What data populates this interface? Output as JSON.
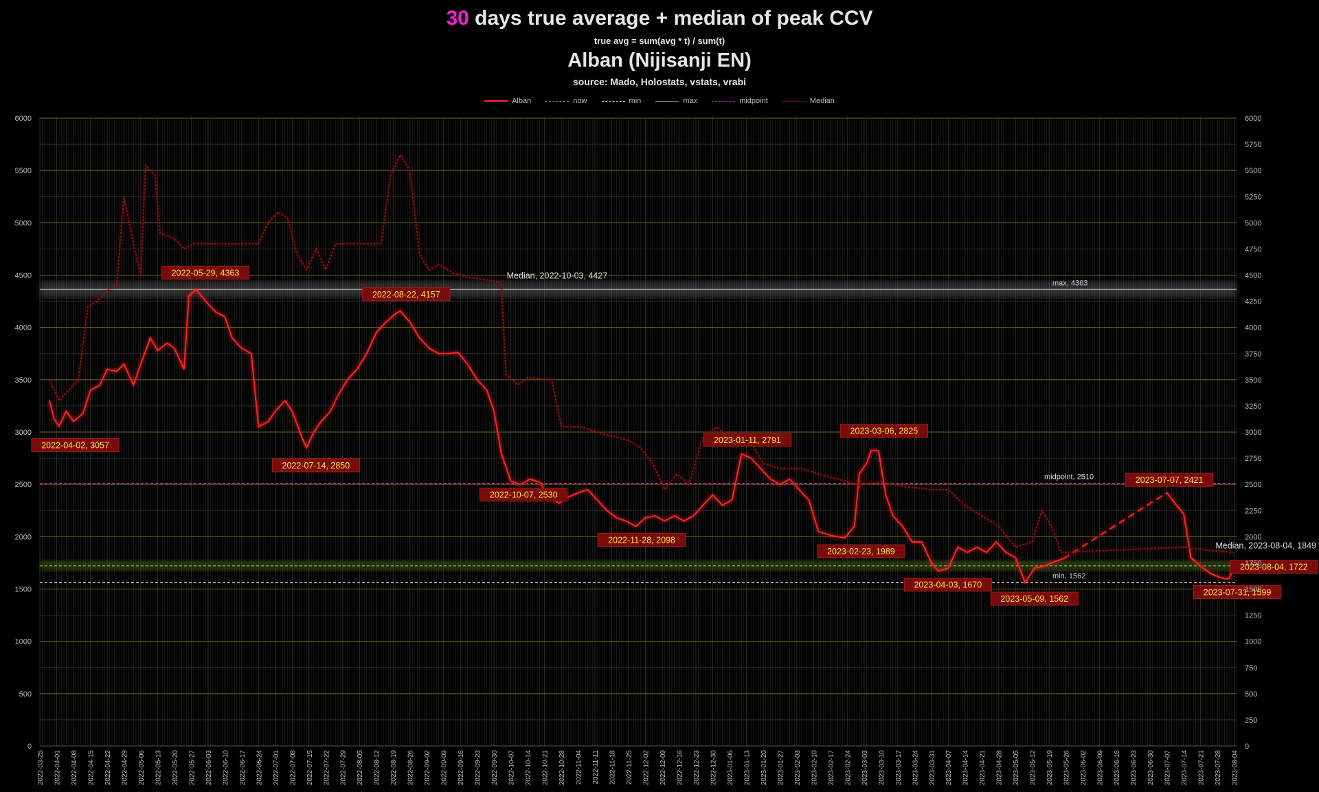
{
  "header": {
    "title_accent": "30",
    "title_rest": " days true average + median of peak CCV",
    "formula": "true avg = sum(avg * t) / sum(t)",
    "subtitle": "Alban (Nijisanji EN)",
    "source": "source: Mado, Holostats, vstats, vrabi"
  },
  "legend": [
    {
      "label": "Alban",
      "color": "#ff2a2a",
      "style": "solid"
    },
    {
      "label": "now",
      "color": "#7fae3a",
      "style": "dashed"
    },
    {
      "label": "min",
      "color": "#dddddd",
      "style": "dashed"
    },
    {
      "label": "max",
      "color": "#888888",
      "style": "solid"
    },
    {
      "label": "midpoint",
      "color": "#d020c0",
      "style": "dashed"
    },
    {
      "label": "Median",
      "color": "#6a0f0f",
      "style": "solid"
    }
  ],
  "chart_data": {
    "type": "line",
    "title": "30 days true average + median of peak CCV",
    "ylim": [
      0,
      6000
    ],
    "y_ticks_left": [
      0,
      500,
      1000,
      1500,
      2000,
      2500,
      3000,
      3500,
      4000,
      4500,
      5000,
      5500,
      6000
    ],
    "y_ticks_right": [
      0,
      250,
      500,
      750,
      1000,
      1250,
      1500,
      1750,
      2000,
      2250,
      2500,
      2750,
      3000,
      3250,
      3500,
      3750,
      4000,
      4250,
      4500,
      4750,
      5000,
      5250,
      5500,
      5750,
      6000
    ],
    "x_start": "2022-03-25",
    "x_end": "2023-08-05",
    "x_ticks": [
      "2022-03-25",
      "2022-04-01",
      "2022-04-08",
      "2022-04-15",
      "2022-04-22",
      "2022-04-29",
      "2022-05-06",
      "2022-05-13",
      "2022-05-20",
      "2022-05-27",
      "2022-06-03",
      "2022-06-10",
      "2022-06-17",
      "2022-06-24",
      "2022-07-01",
      "2022-07-08",
      "2022-07-15",
      "2022-07-22",
      "2022-07-29",
      "2022-08-05",
      "2022-08-12",
      "2022-08-19",
      "2022-08-26",
      "2022-09-02",
      "2022-09-09",
      "2022-09-16",
      "2022-09-23",
      "2022-09-30",
      "2022-10-07",
      "2022-10-14",
      "2022-10-21",
      "2022-10-28",
      "2022-11-04",
      "2022-11-11",
      "2022-11-18",
      "2022-11-25",
      "2022-12-02",
      "2022-12-09",
      "2022-12-16",
      "2022-12-23",
      "2022-12-30",
      "2023-01-06",
      "2023-01-13",
      "2023-01-20",
      "2023-01-27",
      "2023-02-03",
      "2023-02-10",
      "2023-02-17",
      "2023-02-24",
      "2023-03-03",
      "2023-03-10",
      "2023-03-17",
      "2023-03-24",
      "2023-03-31",
      "2023-04-07",
      "2023-04-14",
      "2023-04-21",
      "2023-04-28",
      "2023-05-05",
      "2023-05-12",
      "2023-05-19",
      "2023-05-26",
      "2023-06-02",
      "2023-06-09",
      "2023-06-16",
      "2023-06-23",
      "2023-06-30",
      "2023-07-07",
      "2023-07-14",
      "2023-07-21",
      "2023-07-28",
      "2023-08-04"
    ],
    "series": [
      {
        "name": "Alban",
        "color": "#ff2020",
        "points": [
          [
            "2022-03-29",
            3300
          ],
          [
            "2022-03-31",
            3120
          ],
          [
            "2022-04-02",
            3057
          ],
          [
            "2022-04-05",
            3200
          ],
          [
            "2022-04-08",
            3100
          ],
          [
            "2022-04-12",
            3180
          ],
          [
            "2022-04-15",
            3400
          ],
          [
            "2022-04-19",
            3450
          ],
          [
            "2022-04-22",
            3600
          ],
          [
            "2022-04-26",
            3580
          ],
          [
            "2022-04-29",
            3650
          ],
          [
            "2022-05-03",
            3450
          ],
          [
            "2022-05-06",
            3650
          ],
          [
            "2022-05-10",
            3900
          ],
          [
            "2022-05-13",
            3780
          ],
          [
            "2022-05-17",
            3850
          ],
          [
            "2022-05-20",
            3800
          ],
          [
            "2022-05-24",
            3600
          ],
          [
            "2022-05-26",
            4300
          ],
          [
            "2022-05-29",
            4363
          ],
          [
            "2022-06-02",
            4250
          ],
          [
            "2022-06-06",
            4150
          ],
          [
            "2022-06-10",
            4100
          ],
          [
            "2022-06-13",
            3900
          ],
          [
            "2022-06-17",
            3800
          ],
          [
            "2022-06-21",
            3750
          ],
          [
            "2022-06-24",
            3050
          ],
          [
            "2022-06-28",
            3100
          ],
          [
            "2022-07-01",
            3200
          ],
          [
            "2022-07-05",
            3300
          ],
          [
            "2022-07-08",
            3200
          ],
          [
            "2022-07-12",
            2950
          ],
          [
            "2022-07-14",
            2850
          ],
          [
            "2022-07-17",
            3000
          ],
          [
            "2022-07-20",
            3100
          ],
          [
            "2022-07-24",
            3200
          ],
          [
            "2022-07-27",
            3350
          ],
          [
            "2022-07-31",
            3500
          ],
          [
            "2022-08-04",
            3600
          ],
          [
            "2022-08-08",
            3750
          ],
          [
            "2022-08-12",
            3950
          ],
          [
            "2022-08-16",
            4050
          ],
          [
            "2022-08-20",
            4130
          ],
          [
            "2022-08-22",
            4157
          ],
          [
            "2022-08-26",
            4050
          ],
          [
            "2022-08-30",
            3900
          ],
          [
            "2022-09-03",
            3800
          ],
          [
            "2022-09-07",
            3750
          ],
          [
            "2022-09-11",
            3750
          ],
          [
            "2022-09-15",
            3760
          ],
          [
            "2022-09-19",
            3650
          ],
          [
            "2022-09-23",
            3500
          ],
          [
            "2022-09-27",
            3400
          ],
          [
            "2022-09-30",
            3200
          ],
          [
            "2022-10-03",
            2800
          ],
          [
            "2022-10-07",
            2530
          ],
          [
            "2022-10-11",
            2500
          ],
          [
            "2022-10-15",
            2550
          ],
          [
            "2022-10-19",
            2520
          ],
          [
            "2022-10-23",
            2380
          ],
          [
            "2022-10-27",
            2320
          ],
          [
            "2022-10-31",
            2380
          ],
          [
            "2022-11-04",
            2420
          ],
          [
            "2022-11-08",
            2450
          ],
          [
            "2022-11-12",
            2350
          ],
          [
            "2022-11-16",
            2250
          ],
          [
            "2022-11-20",
            2180
          ],
          [
            "2022-11-24",
            2150
          ],
          [
            "2022-11-28",
            2098
          ],
          [
            "2022-12-02",
            2180
          ],
          [
            "2022-12-06",
            2200
          ],
          [
            "2022-12-10",
            2150
          ],
          [
            "2022-12-14",
            2200
          ],
          [
            "2022-12-18",
            2150
          ],
          [
            "2022-12-22",
            2200
          ],
          [
            "2022-12-26",
            2300
          ],
          [
            "2022-12-30",
            2400
          ],
          [
            "2023-01-03",
            2300
          ],
          [
            "2023-01-07",
            2350
          ],
          [
            "2023-01-11",
            2791
          ],
          [
            "2023-01-15",
            2750
          ],
          [
            "2023-01-19",
            2650
          ],
          [
            "2023-01-23",
            2550
          ],
          [
            "2023-01-27",
            2500
          ],
          [
            "2023-01-31",
            2550
          ],
          [
            "2023-02-04",
            2450
          ],
          [
            "2023-02-08",
            2350
          ],
          [
            "2023-02-12",
            2050
          ],
          [
            "2023-02-16",
            2020
          ],
          [
            "2023-02-20",
            2000
          ],
          [
            "2023-02-23",
            1989
          ],
          [
            "2023-02-27",
            2100
          ],
          [
            "2023-03-01",
            2600
          ],
          [
            "2023-03-04",
            2700
          ],
          [
            "2023-03-06",
            2825
          ],
          [
            "2023-03-09",
            2820
          ],
          [
            "2023-03-12",
            2400
          ],
          [
            "2023-03-15",
            2200
          ],
          [
            "2023-03-19",
            2100
          ],
          [
            "2023-03-23",
            1950
          ],
          [
            "2023-03-27",
            1950
          ],
          [
            "2023-03-31",
            1750
          ],
          [
            "2023-04-03",
            1670
          ],
          [
            "2023-04-07",
            1700
          ],
          [
            "2023-04-11",
            1900
          ],
          [
            "2023-04-15",
            1850
          ],
          [
            "2023-04-19",
            1900
          ],
          [
            "2023-04-23",
            1850
          ],
          [
            "2023-04-27",
            1950
          ],
          [
            "2023-05-01",
            1850
          ],
          [
            "2023-05-05",
            1800
          ],
          [
            "2023-05-09",
            1562
          ],
          [
            "2023-05-13",
            1700
          ],
          [
            "2023-05-17",
            1720
          ],
          [
            "2023-05-21",
            1760
          ],
          [
            "2023-05-25",
            1790
          ],
          [
            "2023-07-07",
            2421
          ],
          [
            "2023-07-11",
            2300
          ],
          [
            "2023-07-14",
            2220
          ],
          [
            "2023-07-17",
            1800
          ],
          [
            "2023-07-21",
            1720
          ],
          [
            "2023-07-25",
            1650
          ],
          [
            "2023-07-28",
            1620
          ],
          [
            "2023-07-31",
            1599
          ],
          [
            "2023-08-02",
            1600
          ],
          [
            "2023-08-04",
            1722
          ]
        ]
      },
      {
        "name": "Median",
        "color": "#8a1414",
        "points": [
          [
            "2022-03-29",
            3500
          ],
          [
            "2022-04-02",
            3300
          ],
          [
            "2022-04-06",
            3400
          ],
          [
            "2022-04-10",
            3500
          ],
          [
            "2022-04-14",
            4200
          ],
          [
            "2022-04-18",
            4250
          ],
          [
            "2022-04-22",
            4350
          ],
          [
            "2022-04-26",
            4400
          ],
          [
            "2022-04-29",
            5250
          ],
          [
            "2022-05-03",
            4800
          ],
          [
            "2022-05-06",
            4500
          ],
          [
            "2022-05-08",
            5550
          ],
          [
            "2022-05-12",
            5450
          ],
          [
            "2022-05-14",
            4900
          ],
          [
            "2022-05-20",
            4850
          ],
          [
            "2022-05-24",
            4750
          ],
          [
            "2022-05-28",
            4800
          ],
          [
            "2022-06-05",
            4800
          ],
          [
            "2022-06-24",
            4800
          ],
          [
            "2022-06-28",
            5000
          ],
          [
            "2022-07-02",
            5100
          ],
          [
            "2022-07-06",
            5050
          ],
          [
            "2022-07-10",
            4700
          ],
          [
            "2022-07-14",
            4550
          ],
          [
            "2022-07-18",
            4750
          ],
          [
            "2022-07-22",
            4550
          ],
          [
            "2022-07-26",
            4800
          ],
          [
            "2022-08-05",
            4800
          ],
          [
            "2022-08-14",
            4800
          ],
          [
            "2022-08-18",
            5450
          ],
          [
            "2022-08-22",
            5650
          ],
          [
            "2022-08-26",
            5500
          ],
          [
            "2022-08-30",
            4700
          ],
          [
            "2022-09-03",
            4550
          ],
          [
            "2022-09-07",
            4600
          ],
          [
            "2022-09-13",
            4520
          ],
          [
            "2022-09-19",
            4480
          ],
          [
            "2022-09-28",
            4450
          ],
          [
            "2022-10-03",
            4427
          ],
          [
            "2022-10-05",
            3550
          ],
          [
            "2022-10-10",
            3450
          ],
          [
            "2022-10-14",
            3520
          ],
          [
            "2022-10-24",
            3500
          ],
          [
            "2022-10-28",
            3050
          ],
          [
            "2022-11-05",
            3050
          ],
          [
            "2022-11-15",
            2980
          ],
          [
            "2022-11-25",
            2920
          ],
          [
            "2022-11-30",
            2850
          ],
          [
            "2022-12-05",
            2700
          ],
          [
            "2022-12-10",
            2450
          ],
          [
            "2022-12-15",
            2600
          ],
          [
            "2022-12-20",
            2500
          ],
          [
            "2022-12-26",
            2950
          ],
          [
            "2023-01-01",
            3050
          ],
          [
            "2023-01-05",
            2950
          ],
          [
            "2023-01-10",
            2980
          ],
          [
            "2023-01-15",
            2900
          ],
          [
            "2023-01-20",
            2700
          ],
          [
            "2023-01-27",
            2650
          ],
          [
            "2023-02-05",
            2650
          ],
          [
            "2023-02-12",
            2600
          ],
          [
            "2023-02-20",
            2550
          ],
          [
            "2023-03-01",
            2500
          ],
          [
            "2023-03-10",
            2520
          ],
          [
            "2023-03-20",
            2480
          ],
          [
            "2023-03-31",
            2450
          ],
          [
            "2023-04-07",
            2450
          ],
          [
            "2023-04-14",
            2300
          ],
          [
            "2023-04-21",
            2200
          ],
          [
            "2023-04-28",
            2100
          ],
          [
            "2023-05-05",
            1900
          ],
          [
            "2023-05-12",
            1950
          ],
          [
            "2023-05-16",
            2250
          ],
          [
            "2023-05-20",
            2100
          ],
          [
            "2023-05-24",
            1850
          ],
          [
            "2023-07-14",
            1900
          ],
          [
            "2023-07-24",
            1870
          ],
          [
            "2023-08-04",
            1849
          ]
        ]
      }
    ],
    "reference_lines": [
      {
        "name": "max",
        "value": 4363,
        "label": "max, 4363",
        "color": "#9a9a9a",
        "style": "solid"
      },
      {
        "name": "midpoint",
        "value": 2510,
        "label": "midpoint, 2510",
        "color": "#d020c0",
        "style": "dashed"
      },
      {
        "name": "now",
        "value": 1722,
        "label": "",
        "color": "#7fae3a",
        "style": "dashed"
      },
      {
        "name": "min",
        "value": 1562,
        "label": "min, 1562",
        "color": "#dddddd",
        "style": "dashed"
      }
    ],
    "annotations": [
      {
        "label": "2022-04-02, 3057",
        "date": "2022-04-02",
        "value": 3057
      },
      {
        "label": "2022-05-29, 4363",
        "date": "2022-05-29",
        "value": 4363
      },
      {
        "label": "2022-07-14, 2850",
        "date": "2022-07-14",
        "value": 2850
      },
      {
        "label": "2022-08-22, 4157",
        "date": "2022-08-22",
        "value": 4157
      },
      {
        "label": "2022-10-07, 2530",
        "date": "2022-10-07",
        "value": 2530
      },
      {
        "label": "2022-11-28, 2098",
        "date": "2022-11-28",
        "value": 2098
      },
      {
        "label": "2023-01-11, 2791",
        "date": "2023-01-11",
        "value": 2791
      },
      {
        "label": "2023-02-23, 1989",
        "date": "2023-02-23",
        "value": 1989
      },
      {
        "label": "2023-03-06, 2825",
        "date": "2023-03-06",
        "value": 2825
      },
      {
        "label": "2023-04-03, 1670",
        "date": "2023-04-03",
        "value": 1670
      },
      {
        "label": "2023-05-09, 1562",
        "date": "2023-05-09",
        "value": 1562
      },
      {
        "label": "2023-07-07, 2421",
        "date": "2023-07-07",
        "value": 2421
      },
      {
        "label": "2023-07-31, 1599",
        "date": "2023-07-31",
        "value": 1599
      },
      {
        "label": "2023-08-04, 1722",
        "date": "2023-08-04",
        "value": 1722
      }
    ],
    "median_labels": [
      {
        "label": "Median, 2022-10-03, 4427",
        "date": "2022-10-03",
        "value": 4427
      },
      {
        "label": "Median, 2023-08-04, 1849",
        "date": "2023-08-04",
        "value": 1849
      }
    ],
    "grid": true,
    "legend_position": "top-center"
  }
}
